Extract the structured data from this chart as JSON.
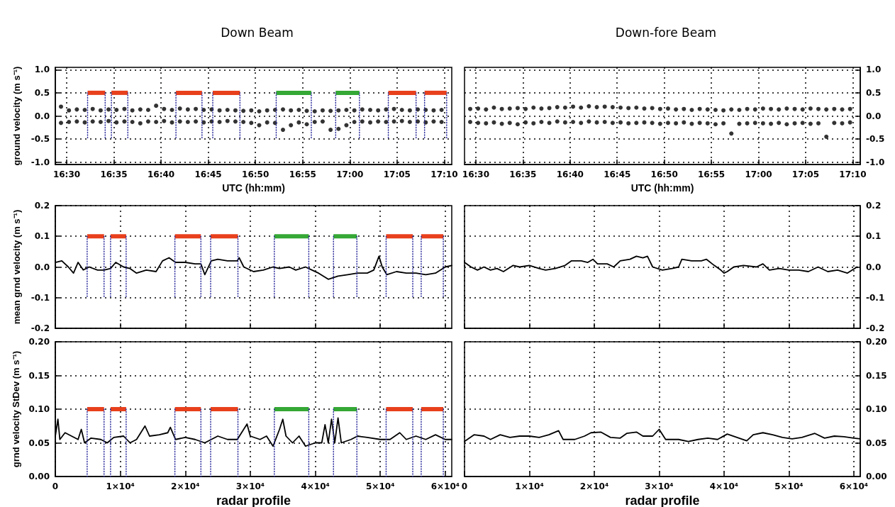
{
  "chart_data": [
    {
      "type": "scatter",
      "title": "Down Beam",
      "xlabel": "UTC (hh:mm)",
      "ylabel": "ground velocity (m s⁻¹)",
      "grid": true,
      "xlim": [
        16.48,
        17.18
      ],
      "xticks": [
        {
          "value": 16.5,
          "label": "16:30"
        },
        {
          "value": 16.5833,
          "label": "16:35"
        },
        {
          "value": 16.6667,
          "label": "16:40"
        },
        {
          "value": 16.75,
          "label": "16:45"
        },
        {
          "value": 16.8333,
          "label": "16:50"
        },
        {
          "value": 16.9167,
          "label": "16:55"
        },
        {
          "value": 17,
          "label": "17:00"
        },
        {
          "value": 17.0833,
          "label": "17:05"
        },
        {
          "value": 17.1667,
          "label": "17:10"
        }
      ],
      "ylim": [
        -1.05,
        1.05
      ],
      "yticks": [
        {
          "value": -1,
          "label": "-1.0"
        },
        {
          "value": -0.5,
          "label": "-0.5"
        },
        {
          "value": 0,
          "label": "0.0"
        },
        0.5,
        {
          "value": 1,
          "label": "1.0"
        }
      ],
      "x": [
        16.49,
        16.49,
        16.504,
        16.504,
        16.518,
        16.518,
        16.532,
        16.532,
        16.546,
        16.546,
        16.56,
        16.56,
        16.574,
        16.574,
        16.588,
        16.588,
        16.602,
        16.602,
        16.616,
        16.616,
        16.63,
        16.63,
        16.644,
        16.644,
        16.658,
        16.658,
        16.672,
        16.672,
        16.686,
        16.686,
        16.7,
        16.7,
        16.714,
        16.714,
        16.728,
        16.728,
        16.742,
        16.742,
        16.756,
        16.756,
        16.77,
        16.77,
        16.784,
        16.784,
        16.798,
        16.798,
        16.812,
        16.812,
        16.826,
        16.826,
        16.84,
        16.84,
        16.854,
        16.854,
        16.868,
        16.868,
        16.882,
        16.882,
        16.896,
        16.896,
        16.91,
        16.91,
        16.924,
        16.924,
        16.938,
        16.938,
        16.952,
        16.952,
        16.966,
        16.966,
        16.98,
        16.98,
        16.994,
        16.994,
        17.008,
        17.008,
        17.022,
        17.022,
        17.036,
        17.036,
        17.05,
        17.05,
        17.064,
        17.064,
        17.078,
        17.078,
        17.092,
        17.092,
        17.106,
        17.106,
        17.12,
        17.12,
        17.134,
        17.134,
        17.148,
        17.148,
        17.162,
        17.162
      ],
      "series": [
        {
          "type": "line",
          "line_style": "dotted",
          "color": "#2e2e9e",
          "x": [
            16.537,
            16.537
          ],
          "values": [
            -0.5,
            0.5
          ]
        },
        {
          "type": "line",
          "line_style": "dotted",
          "color": "#2e2e9e",
          "x": [
            16.568,
            16.568
          ],
          "values": [
            -0.5,
            0.5
          ]
        },
        {
          "type": "line",
          "line_style": "dotted",
          "color": "#2e2e9e",
          "x": [
            16.579,
            16.579
          ],
          "values": [
            -0.5,
            0.5
          ]
        },
        {
          "type": "line",
          "line_style": "dotted",
          "color": "#2e2e9e",
          "x": [
            16.608,
            16.608
          ],
          "values": [
            -0.5,
            0.5
          ]
        },
        {
          "type": "line",
          "line_style": "dotted",
          "color": "#2e2e9e",
          "x": [
            16.693,
            16.693
          ],
          "values": [
            -0.5,
            0.5
          ]
        },
        {
          "type": "line",
          "line_style": "dotted",
          "color": "#2e2e9e",
          "x": [
            16.739,
            16.739
          ],
          "values": [
            -0.5,
            0.5
          ]
        },
        {
          "type": "line",
          "line_style": "dotted",
          "color": "#2e2e9e",
          "x": [
            16.758,
            16.758
          ],
          "values": [
            -0.5,
            0.5
          ]
        },
        {
          "type": "line",
          "line_style": "dotted",
          "color": "#2e2e9e",
          "x": [
            16.806,
            16.806
          ],
          "values": [
            -0.5,
            0.5
          ]
        },
        {
          "type": "line",
          "line_style": "dotted",
          "color": "#2e2e9e",
          "x": [
            16.87,
            16.87
          ],
          "values": [
            -0.5,
            0.5
          ]
        },
        {
          "type": "line",
          "line_style": "dotted",
          "color": "#2e2e9e",
          "x": [
            16.932,
            16.932
          ],
          "values": [
            -0.5,
            0.5
          ]
        },
        {
          "type": "line",
          "line_style": "dotted",
          "color": "#2e2e9e",
          "x": [
            16.975,
            16.975
          ],
          "values": [
            -0.5,
            0.5
          ]
        },
        {
          "type": "line",
          "line_style": "dotted",
          "color": "#2e2e9e",
          "x": [
            17.017,
            17.017
          ],
          "values": [
            -0.5,
            0.5
          ]
        },
        {
          "type": "line",
          "line_style": "dotted",
          "color": "#2e2e9e",
          "x": [
            17.068,
            17.068
          ],
          "values": [
            -0.5,
            0.5
          ]
        },
        {
          "type": "line",
          "line_style": "dotted",
          "color": "#2e2e9e",
          "x": [
            17.117,
            17.117
          ],
          "values": [
            -0.5,
            0.5
          ]
        },
        {
          "type": "line",
          "line_style": "dotted",
          "color": "#2e2e9e",
          "x": [
            17.132,
            17.132
          ],
          "values": [
            -0.5,
            0.5
          ]
        },
        {
          "type": "line",
          "line_style": "dotted",
          "color": "#2e2e9e",
          "x": [
            17.171,
            17.171
          ],
          "values": [
            -0.5,
            0.5
          ]
        },
        {
          "color": "#000000",
          "marker": "circle",
          "values": [
            0.2,
            -0.15,
            0.12,
            -0.13,
            0.14,
            -0.12,
            0.13,
            -0.14,
            0.15,
            -0.12,
            0.12,
            -0.13,
            0.14,
            -0.11,
            0.13,
            -0.14,
            0.15,
            -0.12,
            0.12,
            -0.13,
            0.14,
            -0.16,
            0.13,
            -0.12,
            0.22,
            -0.13,
            0.15,
            -0.11,
            0.13,
            -0.14,
            0.16,
            -0.12,
            0.14,
            -0.13,
            0.15,
            -0.12,
            0.13,
            -0.14,
            0.14,
            -0.12,
            0.12,
            -0.13,
            0.13,
            -0.11,
            0.12,
            -0.12,
            0.11,
            -0.13,
            0.12,
            -0.15,
            0.1,
            -0.2,
            0.12,
            -0.14,
            0.13,
            -0.15,
            0.14,
            -0.3,
            0.12,
            -0.2,
            0.13,
            -0.14,
            0.11,
            -0.18,
            0.1,
            -0.13,
            0.12,
            -0.12,
            0.11,
            -0.3,
            0.12,
            -0.28,
            0.13,
            -0.2,
            0.12,
            -0.13,
            0.14,
            -0.12,
            0.13,
            -0.14,
            0.12,
            -0.12,
            0.14,
            -0.13,
            0.15,
            -0.12,
            0.13,
            -0.11,
            0.12,
            -0.13,
            0.14,
            -0.12,
            0.13,
            -0.14,
            0.12,
            -0.12,
            0.13,
            -0.13
          ]
        },
        {
          "type": "line",
          "color": "#e8401c",
          "x": [
            16.537,
            16.568
          ],
          "values": [
            0.5,
            0.5
          ]
        },
        {
          "type": "line",
          "color": "#e8401c",
          "x": [
            16.579,
            16.608
          ],
          "values": [
            0.5,
            0.5
          ]
        },
        {
          "type": "line",
          "color": "#e8401c",
          "x": [
            16.693,
            16.739
          ],
          "values": [
            0.5,
            0.5
          ]
        },
        {
          "type": "line",
          "color": "#e8401c",
          "x": [
            16.758,
            16.806
          ],
          "values": [
            0.5,
            0.5
          ]
        },
        {
          "type": "line",
          "color": "#35a835",
          "x": [
            16.87,
            16.932
          ],
          "values": [
            0.5,
            0.5
          ]
        },
        {
          "type": "line",
          "color": "#35a835",
          "x": [
            16.975,
            17.017
          ],
          "values": [
            0.5,
            0.5
          ]
        },
        {
          "type": "line",
          "color": "#e8401c",
          "x": [
            17.068,
            17.117
          ],
          "values": [
            0.5,
            0.5
          ]
        },
        {
          "type": "line",
          "color": "#e8401c",
          "x": [
            17.132,
            17.171
          ],
          "values": [
            0.5,
            0.5
          ]
        }
      ]
    },
    {
      "type": "scatter",
      "title": "Down-fore Beam",
      "xlabel": "UTC (hh:mm)",
      "marker": "circle",
      "grid": true,
      "xlim": [
        16.48,
        17.18
      ],
      "xticks": [
        {
          "value": 16.5,
          "label": "16:30"
        },
        {
          "value": 16.5833,
          "label": "16:35"
        },
        {
          "value": 16.6667,
          "label": "16:40"
        },
        {
          "value": 16.75,
          "label": "16:45"
        },
        {
          "value": 16.8333,
          "label": "16:50"
        },
        {
          "value": 16.9167,
          "label": "16:55"
        },
        {
          "value": 17,
          "label": "17:00"
        },
        {
          "value": 17.0833,
          "label": "17:05"
        },
        {
          "value": 17.1667,
          "label": "17:10"
        }
      ],
      "y2lim": [
        -1.05,
        1.05
      ],
      "y2ticks": [
        {
          "value": -1,
          "label": "-1.0"
        },
        {
          "value": -0.5,
          "label": "-0.5"
        },
        {
          "value": 0,
          "label": "0.0"
        },
        0.5,
        {
          "value": 1,
          "label": "1.0"
        }
      ],
      "x": [
        16.49,
        16.49,
        16.504,
        16.504,
        16.518,
        16.518,
        16.532,
        16.532,
        16.546,
        16.546,
        16.56,
        16.56,
        16.574,
        16.574,
        16.588,
        16.588,
        16.602,
        16.602,
        16.616,
        16.616,
        16.63,
        16.63,
        16.644,
        16.644,
        16.658,
        16.658,
        16.672,
        16.672,
        16.686,
        16.686,
        16.7,
        16.7,
        16.714,
        16.714,
        16.728,
        16.728,
        16.742,
        16.742,
        16.756,
        16.756,
        16.77,
        16.77,
        16.784,
        16.784,
        16.798,
        16.798,
        16.812,
        16.812,
        16.826,
        16.826,
        16.84,
        16.84,
        16.854,
        16.854,
        16.868,
        16.868,
        16.882,
        16.882,
        16.896,
        16.896,
        16.91,
        16.91,
        16.924,
        16.924,
        16.938,
        16.938,
        16.952,
        16.952,
        16.966,
        16.966,
        16.98,
        16.98,
        16.994,
        16.994,
        17.008,
        17.008,
        17.022,
        17.022,
        17.036,
        17.036,
        17.05,
        17.05,
        17.064,
        17.064,
        17.078,
        17.078,
        17.092,
        17.092,
        17.106,
        17.106,
        17.12,
        17.12,
        17.134,
        17.134,
        17.148,
        17.148,
        17.162,
        17.162
      ],
      "series": [
        {
          "color": "#000000",
          "axis": "y2",
          "values": [
            0.15,
            -0.13,
            0.16,
            -0.15,
            0.14,
            -0.16,
            0.18,
            -0.14,
            0.15,
            -0.17,
            0.16,
            -0.15,
            0.17,
            -0.18,
            0.15,
            -0.14,
            0.18,
            -0.16,
            0.16,
            -0.13,
            0.17,
            -0.15,
            0.19,
            -0.12,
            0.18,
            -0.14,
            0.2,
            -0.13,
            0.18,
            -0.15,
            0.21,
            -0.12,
            0.19,
            -0.14,
            0.2,
            -0.13,
            0.19,
            -0.15,
            0.18,
            -0.14,
            0.17,
            -0.16,
            0.18,
            -0.15,
            0.16,
            -0.14,
            0.17,
            -0.15,
            0.15,
            -0.17,
            0.16,
            -0.15,
            0.14,
            -0.16,
            0.15,
            -0.14,
            0.13,
            -0.17,
            0.15,
            -0.15,
            0.14,
            -0.16,
            0.13,
            -0.18,
            0.12,
            -0.16,
            0.14,
            -0.38,
            0.13,
            -0.17,
            0.15,
            -0.16,
            0.14,
            -0.15,
            0.16,
            -0.16,
            0.15,
            -0.17,
            0.14,
            -0.15,
            0.16,
            -0.18,
            0.15,
            -0.16,
            0.14,
            -0.15,
            0.16,
            -0.17,
            0.15,
            -0.16,
            0.14,
            -0.45,
            0.15,
            -0.15,
            0.14,
            -0.16,
            0.15,
            -0.14
          ]
        }
      ]
    },
    {
      "type": "line",
      "ylabel": "mean grnd velocity (m s⁻¹)",
      "grid": true,
      "tick_labels": "y",
      "xlim": [
        0,
        61000
      ],
      "xticks": [
        0,
        10000,
        20000,
        30000,
        40000,
        50000,
        60000
      ],
      "ylim": [
        -0.2,
        0.2
      ],
      "yticks": [
        {
          "value": -0.2,
          "label": "-0.2"
        },
        {
          "value": -0.1,
          "label": "-0.1"
        },
        {
          "value": 0,
          "label": "0.0"
        },
        0.1,
        0.2
      ],
      "series": [
        {
          "line_style": "dotted",
          "color": "#2e2e9e",
          "x": [
            4900,
            4900
          ],
          "values": [
            -0.1,
            0.1
          ]
        },
        {
          "line_style": "dotted",
          "color": "#2e2e9e",
          "x": [
            7500,
            7500
          ],
          "values": [
            -0.1,
            0.1
          ]
        },
        {
          "line_style": "dotted",
          "color": "#2e2e9e",
          "x": [
            8500,
            8500
          ],
          "values": [
            -0.1,
            0.1
          ]
        },
        {
          "line_style": "dotted",
          "color": "#2e2e9e",
          "x": [
            10900,
            10900
          ],
          "values": [
            -0.1,
            0.1
          ]
        },
        {
          "line_style": "dotted",
          "color": "#2e2e9e",
          "x": [
            18400,
            18400
          ],
          "values": [
            -0.1,
            0.1
          ]
        },
        {
          "line_style": "dotted",
          "color": "#2e2e9e",
          "x": [
            22400,
            22400
          ],
          "values": [
            -0.1,
            0.1
          ]
        },
        {
          "line_style": "dotted",
          "color": "#2e2e9e",
          "x": [
            23900,
            23900
          ],
          "values": [
            -0.1,
            0.1
          ]
        },
        {
          "line_style": "dotted",
          "color": "#2e2e9e",
          "x": [
            28100,
            28100
          ],
          "values": [
            -0.1,
            0.1
          ]
        },
        {
          "line_style": "dotted",
          "color": "#2e2e9e",
          "x": [
            33700,
            33700
          ],
          "values": [
            -0.1,
            0.1
          ]
        },
        {
          "line_style": "dotted",
          "color": "#2e2e9e",
          "x": [
            39000,
            39000
          ],
          "values": [
            -0.1,
            0.1
          ]
        },
        {
          "line_style": "dotted",
          "color": "#2e2e9e",
          "x": [
            42800,
            42800
          ],
          "values": [
            -0.1,
            0.1
          ]
        },
        {
          "line_style": "dotted",
          "color": "#2e2e9e",
          "x": [
            46400,
            46400
          ],
          "values": [
            -0.1,
            0.1
          ]
        },
        {
          "line_style": "dotted",
          "color": "#2e2e9e",
          "x": [
            50900,
            50900
          ],
          "values": [
            -0.1,
            0.1
          ]
        },
        {
          "line_style": "dotted",
          "color": "#2e2e9e",
          "x": [
            55000,
            55000
          ],
          "values": [
            -0.1,
            0.1
          ]
        },
        {
          "line_style": "dotted",
          "color": "#2e2e9e",
          "x": [
            56300,
            56300
          ],
          "values": [
            -0.1,
            0.1
          ]
        },
        {
          "line_style": "dotted",
          "color": "#2e2e9e",
          "x": [
            59700,
            59700
          ],
          "values": [
            -0.1,
            0.1
          ]
        },
        {
          "color": "#000000",
          "x": [
            0,
            1000,
            2000,
            2800,
            3500,
            4300,
            5200,
            6500,
            7500,
            8500,
            9300,
            10500,
            11500,
            12500,
            14000,
            15500,
            16500,
            17500,
            18500,
            20000,
            21500,
            22400,
            23000,
            24000,
            25000,
            26500,
            28000,
            28300,
            29000,
            30500,
            32000,
            33500,
            34500,
            36000,
            37000,
            38500,
            39500,
            40500,
            42000,
            43500,
            45000,
            46500,
            48000,
            49000,
            49800,
            50300,
            51000,
            52500,
            54000,
            55500,
            57000,
            58500,
            60000,
            61000
          ],
          "values": [
            0.015,
            0.02,
            0.0,
            -0.02,
            0.015,
            -0.01,
            0.0,
            -0.01,
            -0.01,
            -0.005,
            0.015,
            0.0,
            -0.005,
            -0.02,
            -0.01,
            -0.015,
            0.02,
            0.03,
            0.015,
            0.015,
            0.01,
            0.01,
            -0.025,
            0.02,
            0.025,
            0.02,
            0.02,
            0.03,
            0.0,
            -0.015,
            -0.01,
            0.0,
            -0.005,
            0.0,
            -0.01,
            0.0,
            -0.01,
            -0.02,
            -0.04,
            -0.03,
            -0.025,
            -0.02,
            -0.02,
            -0.01,
            0.035,
            0.0,
            -0.025,
            -0.015,
            -0.02,
            -0.02,
            -0.025,
            -0.02,
            0.0,
            0.005
          ]
        },
        {
          "color": "#e8401c",
          "x": [
            4900,
            7500
          ],
          "values": [
            0.1,
            0.1
          ]
        },
        {
          "color": "#e8401c",
          "x": [
            8500,
            10900
          ],
          "values": [
            0.1,
            0.1
          ]
        },
        {
          "color": "#e8401c",
          "x": [
            18400,
            22400
          ],
          "values": [
            0.1,
            0.1
          ]
        },
        {
          "color": "#e8401c",
          "x": [
            23900,
            28100
          ],
          "values": [
            0.1,
            0.1
          ]
        },
        {
          "color": "#35a835",
          "x": [
            33700,
            39000
          ],
          "values": [
            0.1,
            0.1
          ]
        },
        {
          "color": "#35a835",
          "x": [
            42800,
            46400
          ],
          "values": [
            0.1,
            0.1
          ]
        },
        {
          "color": "#e8401c",
          "x": [
            50900,
            55000
          ],
          "values": [
            0.1,
            0.1
          ]
        },
        {
          "color": "#e8401c",
          "x": [
            56300,
            59700
          ],
          "values": [
            0.1,
            0.1
          ]
        }
      ]
    },
    {
      "type": "line",
      "grid": true,
      "tick_labels": "y",
      "xlim": [
        0,
        61000
      ],
      "xticks": [
        0,
        10000,
        20000,
        30000,
        40000,
        50000,
        60000
      ],
      "y2lim": [
        -0.2,
        0.2
      ],
      "y2ticks": [
        {
          "value": -0.2,
          "label": "-0.2"
        },
        {
          "value": -0.1,
          "label": "-0.1"
        },
        {
          "value": 0,
          "label": "0.0"
        },
        0.1,
        0.2
      ],
      "series": [
        {
          "color": "#000000",
          "axis": "y2",
          "x": [
            0,
            1000,
            2000,
            3000,
            4000,
            5000,
            6000,
            7500,
            8500,
            10000,
            11500,
            12500,
            14000,
            15500,
            16500,
            18000,
            19000,
            19800,
            20500,
            22000,
            23000,
            24000,
            25500,
            26500,
            27500,
            28200,
            29000,
            30500,
            32000,
            33000,
            33500,
            35000,
            36500,
            37300,
            38500,
            39500,
            40000,
            40500,
            41500,
            43000,
            45000,
            46000,
            47000,
            48500,
            50000,
            51500,
            53000,
            54500,
            56000,
            57500,
            59000,
            60500
          ],
          "values": [
            0.015,
            0.0,
            -0.01,
            0.0,
            -0.01,
            -0.005,
            -0.015,
            0.005,
            0.0,
            0.005,
            -0.005,
            -0.01,
            -0.005,
            0.005,
            0.02,
            0.02,
            0.015,
            0.025,
            0.01,
            0.01,
            0.0,
            0.02,
            0.025,
            0.035,
            0.03,
            0.035,
            0.0,
            -0.01,
            -0.005,
            0.0,
            0.025,
            0.02,
            0.02,
            0.025,
            0.005,
            -0.01,
            -0.02,
            -0.015,
            0.0,
            0.005,
            0.0,
            0.01,
            -0.01,
            -0.005,
            -0.01,
            -0.01,
            -0.015,
            0.0,
            -0.015,
            -0.01,
            -0.02,
            0.0
          ]
        }
      ]
    },
    {
      "type": "line",
      "xlabel": "radar profile",
      "ylabel": "grnd velocity StDev (m s⁻¹)",
      "grid": true,
      "xlim": [
        0,
        61000
      ],
      "xticks": [
        0,
        {
          "value": 10000,
          "label": "1×10⁴"
        },
        {
          "value": 20000,
          "label": "2×10⁴"
        },
        {
          "value": 30000,
          "label": "3×10⁴"
        },
        {
          "value": 40000,
          "label": "4×10⁴"
        },
        {
          "value": 50000,
          "label": "5×10⁴"
        },
        {
          "value": 60000,
          "label": "6×10⁴"
        }
      ],
      "ylim": [
        0,
        0.2
      ],
      "yticks": [
        {
          "value": 0,
          "label": "0.00"
        },
        {
          "value": 0.05,
          "label": "0.05"
        },
        {
          "value": 0.1,
          "label": "0.10"
        },
        {
          "value": 0.15,
          "label": "0.15"
        },
        {
          "value": 0.2,
          "label": "0.20"
        }
      ],
      "series": [
        {
          "line_style": "dotted",
          "color": "#2e2e9e",
          "x": [
            4900,
            4900
          ],
          "values": [
            0,
            0.1
          ]
        },
        {
          "line_style": "dotted",
          "color": "#2e2e9e",
          "x": [
            7500,
            7500
          ],
          "values": [
            0,
            0.1
          ]
        },
        {
          "line_style": "dotted",
          "color": "#2e2e9e",
          "x": [
            8500,
            8500
          ],
          "values": [
            0,
            0.1
          ]
        },
        {
          "line_style": "dotted",
          "color": "#2e2e9e",
          "x": [
            10900,
            10900
          ],
          "values": [
            0,
            0.1
          ]
        },
        {
          "line_style": "dotted",
          "color": "#2e2e9e",
          "x": [
            18400,
            18400
          ],
          "values": [
            0,
            0.1
          ]
        },
        {
          "line_style": "dotted",
          "color": "#2e2e9e",
          "x": [
            22400,
            22400
          ],
          "values": [
            0,
            0.1
          ]
        },
        {
          "line_style": "dotted",
          "color": "#2e2e9e",
          "x": [
            23900,
            23900
          ],
          "values": [
            0,
            0.1
          ]
        },
        {
          "line_style": "dotted",
          "color": "#2e2e9e",
          "x": [
            28100,
            28100
          ],
          "values": [
            0,
            0.1
          ]
        },
        {
          "line_style": "dotted",
          "color": "#2e2e9e",
          "x": [
            33700,
            33700
          ],
          "values": [
            0,
            0.1
          ]
        },
        {
          "line_style": "dotted",
          "color": "#2e2e9e",
          "x": [
            39000,
            39000
          ],
          "values": [
            0,
            0.1
          ]
        },
        {
          "line_style": "dotted",
          "color": "#2e2e9e",
          "x": [
            42800,
            42800
          ],
          "values": [
            0,
            0.1
          ]
        },
        {
          "line_style": "dotted",
          "color": "#2e2e9e",
          "x": [
            46400,
            46400
          ],
          "values": [
            0,
            0.1
          ]
        },
        {
          "line_style": "dotted",
          "color": "#2e2e9e",
          "x": [
            50900,
            50900
          ],
          "values": [
            0,
            0.1
          ]
        },
        {
          "line_style": "dotted",
          "color": "#2e2e9e",
          "x": [
            55000,
            55000
          ],
          "values": [
            0,
            0.1
          ]
        },
        {
          "line_style": "dotted",
          "color": "#2e2e9e",
          "x": [
            56300,
            56300
          ],
          "values": [
            0,
            0.1
          ]
        },
        {
          "line_style": "dotted",
          "color": "#2e2e9e",
          "x": [
            59700,
            59700
          ],
          "values": [
            0,
            0.1
          ]
        },
        {
          "color": "#000000",
          "x": [
            0,
            400,
            700,
            1500,
            2500,
            3500,
            4000,
            4500,
            5500,
            7000,
            8000,
            9000,
            10500,
            11500,
            12500,
            13800,
            14500,
            16000,
            17300,
            17700,
            18500,
            20000,
            21500,
            23000,
            25000,
            26500,
            28000,
            29500,
            30000,
            31500,
            32500,
            33500,
            34500,
            35000,
            35500,
            36500,
            37500,
            38500,
            40000,
            41000,
            41500,
            42000,
            42500,
            43000,
            43500,
            44000,
            45500,
            46500,
            48000,
            50000,
            51500,
            53000,
            54000,
            55500,
            57000,
            58500,
            60000,
            61000
          ],
          "values": [
            0.06,
            0.085,
            0.055,
            0.065,
            0.06,
            0.055,
            0.07,
            0.05,
            0.057,
            0.055,
            0.05,
            0.058,
            0.06,
            0.05,
            0.055,
            0.075,
            0.06,
            0.062,
            0.065,
            0.073,
            0.055,
            0.058,
            0.055,
            0.05,
            0.06,
            0.055,
            0.055,
            0.078,
            0.06,
            0.055,
            0.06,
            0.045,
            0.07,
            0.085,
            0.06,
            0.05,
            0.06,
            0.045,
            0.05,
            0.05,
            0.077,
            0.05,
            0.085,
            0.05,
            0.087,
            0.05,
            0.055,
            0.06,
            0.058,
            0.055,
            0.055,
            0.065,
            0.055,
            0.06,
            0.055,
            0.062,
            0.055,
            0.055
          ]
        },
        {
          "color": "#e8401c",
          "x": [
            4900,
            7500
          ],
          "values": [
            0.1,
            0.1
          ]
        },
        {
          "color": "#e8401c",
          "x": [
            8500,
            10900
          ],
          "values": [
            0.1,
            0.1
          ]
        },
        {
          "color": "#e8401c",
          "x": [
            18400,
            22400
          ],
          "values": [
            0.1,
            0.1
          ]
        },
        {
          "color": "#e8401c",
          "x": [
            23900,
            28100
          ],
          "values": [
            0.1,
            0.1
          ]
        },
        {
          "color": "#35a835",
          "x": [
            33700,
            39000
          ],
          "values": [
            0.1,
            0.1
          ]
        },
        {
          "color": "#35a835",
          "x": [
            42800,
            46400
          ],
          "values": [
            0.1,
            0.1
          ]
        },
        {
          "color": "#e8401c",
          "x": [
            50900,
            55000
          ],
          "values": [
            0.1,
            0.1
          ]
        },
        {
          "color": "#e8401c",
          "x": [
            56300,
            59700
          ],
          "values": [
            0.1,
            0.1
          ]
        }
      ]
    },
    {
      "type": "line",
      "xlabel": "radar profile",
      "grid": true,
      "xlim": [
        0,
        61000
      ],
      "xticks": [
        0,
        {
          "value": 10000,
          "label": "1×10⁴"
        },
        {
          "value": 20000,
          "label": "2×10⁴"
        },
        {
          "value": 30000,
          "label": "3×10⁴"
        },
        {
          "value": 40000,
          "label": "4×10⁴"
        },
        {
          "value": 50000,
          "label": "5×10⁴"
        },
        {
          "value": 60000,
          "label": "6×10⁴"
        }
      ],
      "y2lim": [
        0,
        0.2
      ],
      "y2ticks": [
        {
          "value": 0,
          "label": "0.00"
        },
        {
          "value": 0.05,
          "label": "0.05"
        },
        {
          "value": 0.1,
          "label": "0.10"
        },
        {
          "value": 0.15,
          "label": "0.15"
        },
        {
          "value": 0.2,
          "label": "0.20"
        }
      ],
      "series": [
        {
          "color": "#000000",
          "axis": "y2",
          "x": [
            0,
            1500,
            3000,
            4000,
            5500,
            7000,
            8500,
            10000,
            11500,
            13000,
            14500,
            15200,
            17000,
            18500,
            19500,
            21000,
            22500,
            24000,
            25000,
            26500,
            27500,
            29000,
            30000,
            31000,
            33000,
            34500,
            36000,
            37500,
            39000,
            40500,
            42000,
            43500,
            44500,
            46000,
            47500,
            49000,
            50500,
            52000,
            54000,
            55500,
            57000,
            58500,
            60000,
            61000
          ],
          "values": [
            0.052,
            0.062,
            0.06,
            0.055,
            0.062,
            0.058,
            0.06,
            0.06,
            0.058,
            0.062,
            0.068,
            0.055,
            0.055,
            0.06,
            0.065,
            0.066,
            0.058,
            0.057,
            0.064,
            0.066,
            0.06,
            0.06,
            0.07,
            0.055,
            0.055,
            0.052,
            0.055,
            0.057,
            0.055,
            0.063,
            0.058,
            0.053,
            0.062,
            0.065,
            0.062,
            0.058,
            0.056,
            0.058,
            0.064,
            0.057,
            0.06,
            0.059,
            0.057,
            0.056
          ]
        }
      ]
    }
  ]
}
